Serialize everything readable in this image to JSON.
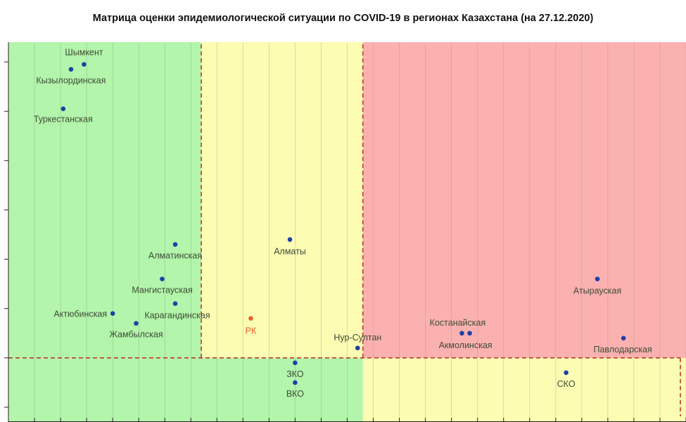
{
  "chart_data": {
    "type": "scatter",
    "title": "Матрица оценки эпидемиологической ситуации по COVID-19 в регионах Казахстана (на 27.12.2020)",
    "xlabel": "",
    "ylabel": "",
    "xlim": [
      0,
      26
    ],
    "ylim": [
      -1.3,
      6.4
    ],
    "grid": true,
    "x_ticks": [
      1,
      2,
      3,
      4,
      5,
      6,
      7,
      8,
      9,
      10,
      11,
      12,
      13,
      14,
      15,
      16,
      17,
      18,
      19,
      20,
      21,
      22,
      23,
      24,
      25,
      26
    ],
    "y_ticks": [
      -1,
      0,
      1,
      2,
      3,
      4,
      5,
      6
    ],
    "zones": [
      {
        "x": [
          0,
          7.4
        ],
        "y": [
          0,
          6.4
        ],
        "color": "#b3f5ab"
      },
      {
        "x": [
          7.4,
          13.6
        ],
        "y": [
          0,
          6.4
        ],
        "color": "#fcfcb3"
      },
      {
        "x": [
          13.6,
          26
        ],
        "y": [
          0,
          6.4
        ],
        "color": "#fcb1b1"
      },
      {
        "x": [
          0,
          13.6
        ],
        "y": [
          -1.3,
          0
        ],
        "color": "#b3f5ab"
      },
      {
        "x": [
          13.6,
          26
        ],
        "y": [
          -1.3,
          0
        ],
        "color": "#fcfcb3"
      }
    ],
    "thresholds": {
      "x": [
        7.4,
        13.6
      ],
      "y": 0,
      "color": "#c0392b"
    },
    "points": [
      {
        "name": "Шымкент",
        "x": 2.9,
        "y": 5.95,
        "color": "#1f3fa6"
      },
      {
        "name": "Кызылординская",
        "x": 2.4,
        "y": 5.85,
        "color": "#1f3fa6"
      },
      {
        "name": "Туркестанская",
        "x": 2.1,
        "y": 5.05,
        "color": "#1f3fa6"
      },
      {
        "name": "Алматинская",
        "x": 6.4,
        "y": 2.3,
        "color": "#1f3fa6"
      },
      {
        "name": "Мангистауская",
        "x": 5.9,
        "y": 1.6,
        "color": "#1f3fa6"
      },
      {
        "name": "Карагандинская",
        "x": 6.4,
        "y": 1.1,
        "color": "#1f3fa6"
      },
      {
        "name": "Актюбинская",
        "x": 4.0,
        "y": 0.9,
        "color": "#1f3fa6"
      },
      {
        "name": "Жамбылская",
        "x": 4.9,
        "y": 0.7,
        "color": "#1f3fa6"
      },
      {
        "name": "Алматы",
        "x": 10.8,
        "y": 2.4,
        "color": "#1f3fa6"
      },
      {
        "name": "РК",
        "x": 9.3,
        "y": 0.8,
        "color": "#e8622a"
      },
      {
        "name": "Нур-Султан",
        "x": 13.4,
        "y": 0.2,
        "color": "#1f3fa6"
      },
      {
        "name": "ЗКО",
        "x": 11.0,
        "y": -0.1,
        "color": "#1f3fa6"
      },
      {
        "name": "ВКО",
        "x": 11.0,
        "y": -0.5,
        "color": "#1f3fa6"
      },
      {
        "name": "Костанайская",
        "x": 17.4,
        "y": 0.5,
        "color": "#1f3fa6"
      },
      {
        "name": "Акмолинская",
        "x": 17.7,
        "y": 0.5,
        "color": "#1f3fa6"
      },
      {
        "name": "Атырауская",
        "x": 22.6,
        "y": 1.6,
        "color": "#1f3fa6"
      },
      {
        "name": "Павлодарская",
        "x": 23.6,
        "y": 0.4,
        "color": "#1f3fa6"
      },
      {
        "name": "СКО",
        "x": 21.4,
        "y": -0.3,
        "color": "#1f3fa6"
      }
    ]
  }
}
